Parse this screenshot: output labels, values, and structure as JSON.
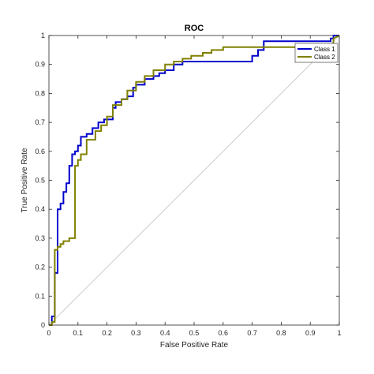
{
  "chart_data": {
    "type": "line",
    "title": "ROC",
    "xlabel": "False Positive Rate",
    "ylabel": "True Positive Rate",
    "xlim": [
      0,
      1
    ],
    "ylim": [
      0,
      1
    ],
    "xticks": [
      "0",
      "0.1",
      "0.2",
      "0.3",
      "0.4",
      "0.5",
      "0.6",
      "0.7",
      "0.8",
      "0.9",
      "1"
    ],
    "yticks": [
      "0",
      "0.1",
      "0.2",
      "0.3",
      "0.4",
      "0.5",
      "0.6",
      "0.7",
      "0.8",
      "0.9",
      "1"
    ],
    "grid": false,
    "legend_location": "top-right",
    "series": [
      {
        "name": "Class 1",
        "color": "#0000cc",
        "x": [
          0,
          0.01,
          0.01,
          0.02,
          0.02,
          0.03,
          0.03,
          0.04,
          0.04,
          0.05,
          0.05,
          0.06,
          0.06,
          0.07,
          0.07,
          0.08,
          0.08,
          0.09,
          0.09,
          0.1,
          0.1,
          0.11,
          0.11,
          0.13,
          0.13,
          0.15,
          0.15,
          0.17,
          0.17,
          0.19,
          0.19,
          0.22,
          0.22,
          0.23,
          0.23,
          0.25,
          0.25,
          0.27,
          0.27,
          0.29,
          0.29,
          0.3,
          0.3,
          0.33,
          0.33,
          0.36,
          0.36,
          0.38,
          0.38,
          0.4,
          0.4,
          0.43,
          0.43,
          0.46,
          0.46,
          0.7,
          0.7,
          0.72,
          0.72,
          0.74,
          0.74,
          0.97,
          0.97,
          0.98,
          0.98,
          1.0
        ],
        "y": [
          0,
          0,
          0.03,
          0.03,
          0.18,
          0.18,
          0.4,
          0.4,
          0.42,
          0.42,
          0.46,
          0.46,
          0.49,
          0.49,
          0.55,
          0.55,
          0.59,
          0.59,
          0.6,
          0.6,
          0.62,
          0.62,
          0.65,
          0.65,
          0.66,
          0.66,
          0.68,
          0.68,
          0.7,
          0.7,
          0.71,
          0.71,
          0.75,
          0.75,
          0.77,
          0.77,
          0.78,
          0.78,
          0.79,
          0.79,
          0.82,
          0.82,
          0.83,
          0.83,
          0.85,
          0.85,
          0.86,
          0.86,
          0.87,
          0.87,
          0.88,
          0.88,
          0.9,
          0.9,
          0.91,
          0.91,
          0.93,
          0.93,
          0.95,
          0.95,
          0.98,
          0.98,
          0.99,
          0.99,
          1.0,
          1.0
        ]
      },
      {
        "name": "Class 2",
        "color": "#808000",
        "x": [
          0,
          0.01,
          0.01,
          0.02,
          0.02,
          0.03,
          0.03,
          0.04,
          0.04,
          0.05,
          0.05,
          0.07,
          0.07,
          0.09,
          0.09,
          0.1,
          0.1,
          0.11,
          0.11,
          0.13,
          0.13,
          0.16,
          0.16,
          0.18,
          0.18,
          0.2,
          0.2,
          0.22,
          0.22,
          0.25,
          0.25,
          0.27,
          0.27,
          0.3,
          0.3,
          0.33,
          0.33,
          0.36,
          0.36,
          0.4,
          0.4,
          0.43,
          0.43,
          0.46,
          0.46,
          0.49,
          0.49,
          0.53,
          0.53,
          0.56,
          0.56,
          0.6,
          0.6,
          0.96,
          0.96,
          0.98,
          0.98,
          1.0
        ],
        "y": [
          0,
          0,
          0.01,
          0.01,
          0.26,
          0.26,
          0.27,
          0.27,
          0.28,
          0.28,
          0.29,
          0.29,
          0.3,
          0.3,
          0.55,
          0.55,
          0.57,
          0.57,
          0.59,
          0.59,
          0.64,
          0.64,
          0.67,
          0.67,
          0.69,
          0.69,
          0.72,
          0.72,
          0.76,
          0.76,
          0.78,
          0.78,
          0.81,
          0.81,
          0.84,
          0.84,
          0.86,
          0.86,
          0.88,
          0.88,
          0.9,
          0.9,
          0.91,
          0.91,
          0.92,
          0.92,
          0.93,
          0.93,
          0.94,
          0.94,
          0.95,
          0.95,
          0.96,
          0.96,
          0.97,
          0.97,
          0.99,
          1.0
        ]
      }
    ],
    "reference_line": {
      "x": [
        0,
        1
      ],
      "y": [
        0,
        1
      ],
      "color": "#cccccc"
    }
  }
}
